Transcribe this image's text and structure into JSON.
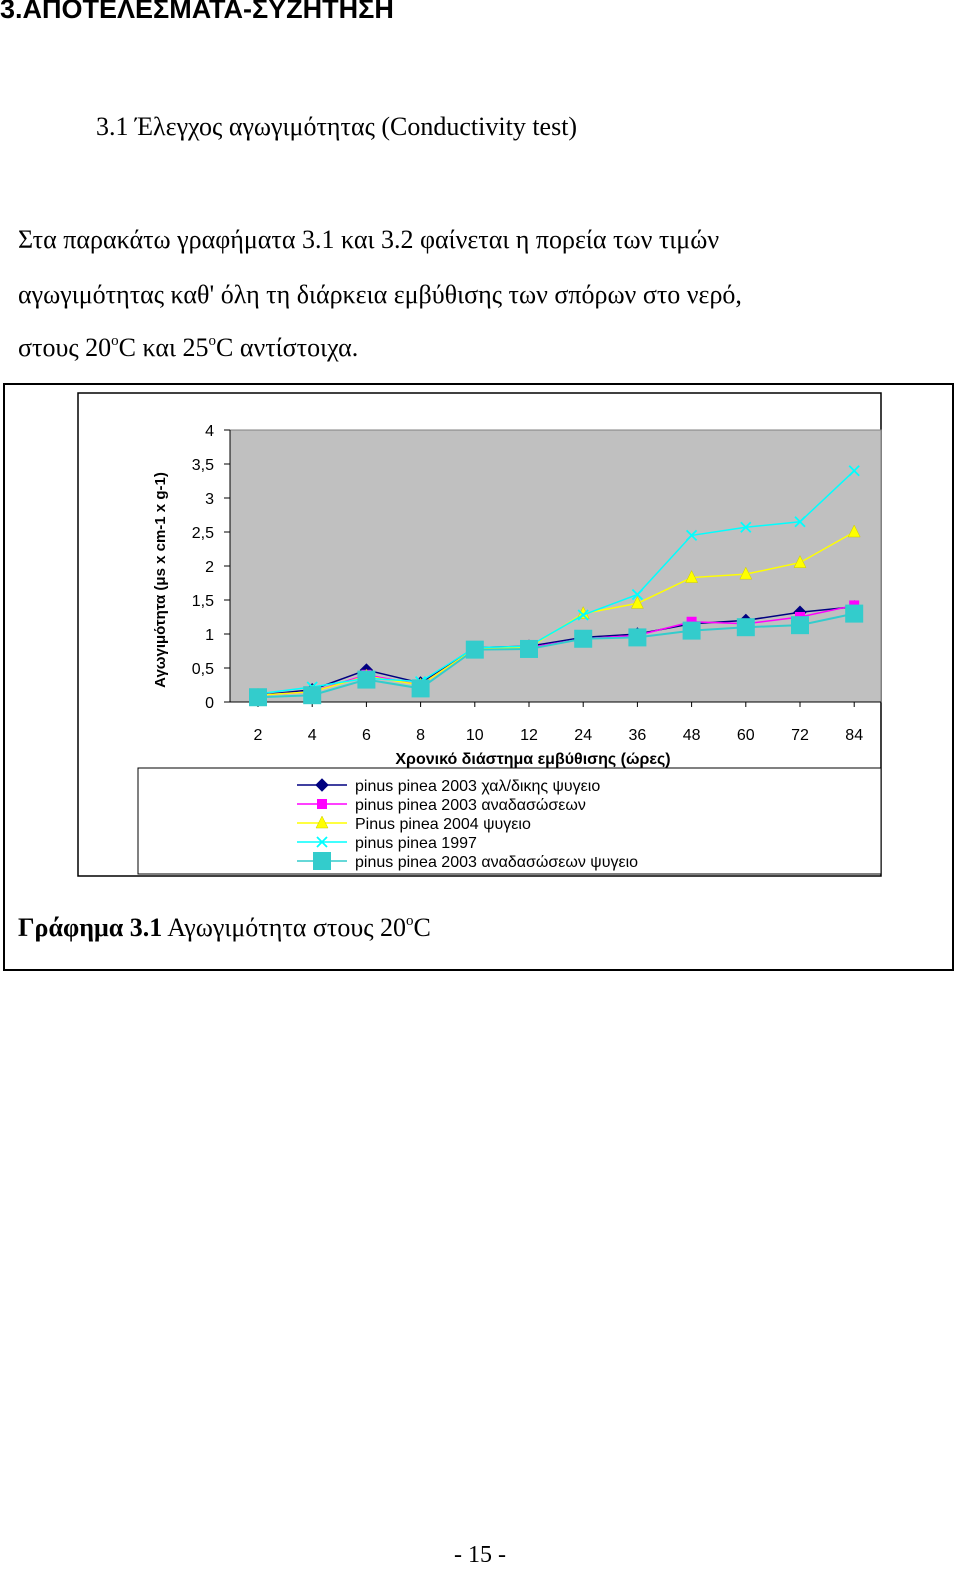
{
  "heading": "3.ΑΠΟΤΕΛΕΣΜΑΤΑ-ΣΥΖΗΤΗΣΗ",
  "subheading": "3.1 Έλεγχος αγωγιμότητας (Conductivity test)",
  "paragraph": {
    "line1": "Στα παρακάτω γραφήματα 3.1 και 3.2 φαίνεται  η πορεία των τιμών",
    "line2": "αγωγιμότητας καθ' όλη τη διάρκεια εμβύθισης των σπόρων στο νερό,",
    "line3_a": "στους 20",
    "line3_sup1": "o",
    "line3_b": "C και 25",
    "line3_sup2": "o",
    "line3_c": "C αντίστοιχα."
  },
  "chart_data": {
    "type": "line",
    "title": "",
    "xlabel": "Χρονικό διάστημα εμβύθισης (ώρες)",
    "ylabel": "Αγωγιμότητα (μs x cm-1 x g-1)",
    "categories": [
      "2",
      "4",
      "6",
      "8",
      "10",
      "12",
      "24",
      "36",
      "48",
      "60",
      "72",
      "84"
    ],
    "yticks": [
      "0",
      "0,5",
      "1",
      "1,5",
      "2",
      "2,5",
      "3",
      "3,5",
      "4"
    ],
    "ylim": [
      0,
      4
    ],
    "grid": false,
    "plot_background": "#c0c0c0",
    "legend_position": "bottom",
    "series": [
      {
        "name": "pinus pinea 2003 χαλ/δικης ψυγειο",
        "color": "#000080",
        "marker": "diamond",
        "values": [
          0.1,
          0.18,
          0.47,
          0.28,
          0.8,
          0.82,
          0.95,
          1.0,
          1.15,
          1.2,
          1.32,
          1.4
        ]
      },
      {
        "name": "pinus pinea 2003 αναδασώσεων",
        "color": "#ff00ff",
        "marker": "square",
        "values": [
          0.1,
          0.15,
          0.4,
          0.25,
          0.78,
          0.8,
          0.93,
          0.98,
          1.18,
          1.15,
          1.25,
          1.42
        ]
      },
      {
        "name": "Pinus pinea 2004 ψυγειο",
        "color": "#ffff00",
        "marker": "triangle",
        "values": [
          0.1,
          0.15,
          0.38,
          0.25,
          0.78,
          0.8,
          1.3,
          1.45,
          1.83,
          1.88,
          2.05,
          2.5
        ]
      },
      {
        "name": "pinus pinea 1997",
        "color": "#00ffff",
        "marker": "x",
        "values": [
          0.12,
          0.22,
          0.35,
          0.3,
          0.8,
          0.82,
          1.28,
          1.58,
          2.45,
          2.57,
          2.65,
          3.4
        ]
      },
      {
        "name": "pinus pinea 2003 αναδασώσεων ψυγειο",
        "color": "#33cccc",
        "marker": "bigsquare",
        "values": [
          0.07,
          0.1,
          0.33,
          0.2,
          0.77,
          0.78,
          0.93,
          0.95,
          1.05,
          1.1,
          1.13,
          1.3
        ]
      }
    ]
  },
  "caption": {
    "bold": "Γράφημα 3.1",
    "text": " Αγωγιμότητα στους 20",
    "sup": "o",
    "tail": "C"
  },
  "page_number": "- 15 -"
}
